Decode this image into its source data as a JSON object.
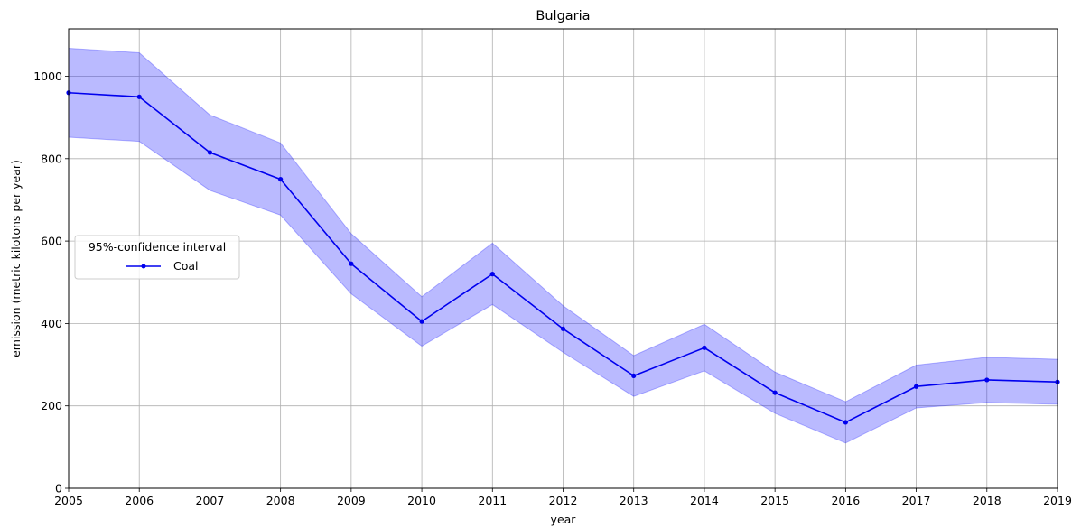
{
  "chart_data": {
    "type": "line",
    "title": "Bulgaria",
    "xlabel": "year",
    "ylabel": "emission (metric kilotons per year)",
    "x": [
      2005,
      2006,
      2007,
      2008,
      2009,
      2010,
      2011,
      2012,
      2013,
      2014,
      2015,
      2016,
      2017,
      2018,
      2019
    ],
    "xlim": [
      2005,
      2019
    ],
    "ylim": [
      0,
      1115
    ],
    "yticks": [
      0,
      200,
      400,
      600,
      800,
      1000
    ],
    "grid": true,
    "legend": {
      "title": "95%-confidence interval",
      "placement": "center-left"
    },
    "series": [
      {
        "name": "Coal",
        "color": "#0000ee",
        "band_color": "#0000ff",
        "values": [
          960,
          950,
          815,
          750,
          545,
          405,
          520,
          387,
          273,
          341,
          232,
          160,
          247,
          263,
          258
        ],
        "lower": [
          852,
          842,
          723,
          663,
          472,
          345,
          446,
          330,
          223,
          285,
          182,
          110,
          195,
          208,
          204
        ],
        "upper": [
          1068,
          1057,
          906,
          838,
          618,
          465,
          595,
          443,
          322,
          398,
          282,
          210,
          299,
          318,
          313
        ]
      }
    ]
  }
}
